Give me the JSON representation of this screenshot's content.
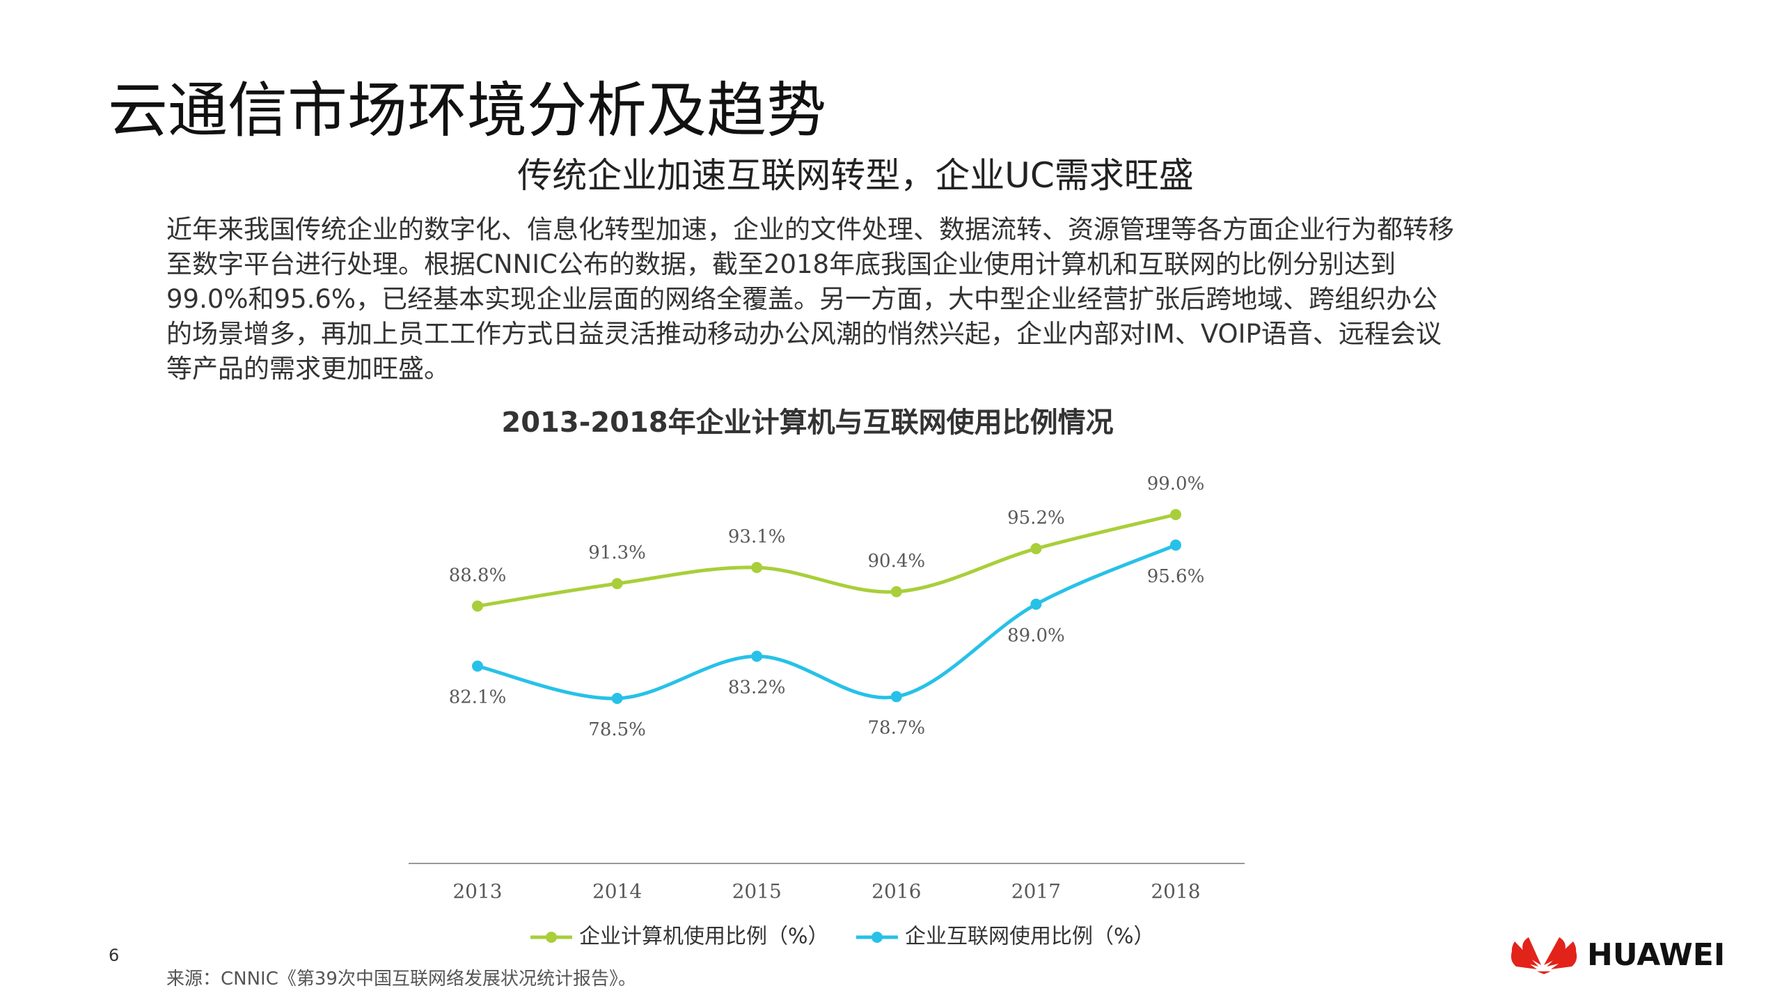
{
  "header": {
    "title": "云通信市场环境分析及趋势",
    "subtitle": "传统企业加速互联网转型，企业UC需求旺盛"
  },
  "body": {
    "paragraph": "近年来我国传统企业的数字化、信息化转型加速，企业的文件处理、数据流转、资源管理等各方面企业行为都转移至数字平台进行处理。根据CNNIC公布的数据，截至2018年底我国企业使用计算机和互联网的比例分别达到99.0%和95.6%，已经基本实现企业层面的网络全覆盖。另一方面，大中型企业经营扩张后跨地域、跨组织办公的场景增多，再加上员工工作方式日益灵活推动移动办公风潮的悄然兴起，企业内部对IM、VOIP语音、远程会议等产品的需求更加旺盛。"
  },
  "chart_data": {
    "type": "line",
    "title": "2013-2018年企业计算机与互联网使用比例情况",
    "categories": [
      "2013",
      "2014",
      "2015",
      "2016",
      "2017",
      "2018"
    ],
    "series": [
      {
        "name": "企业计算机使用比例（%）",
        "color": "#a8cf3a",
        "values": [
          88.8,
          91.3,
          93.1,
          90.4,
          95.2,
          99.0
        ],
        "value_labels": [
          "88.8%",
          "91.3%",
          "93.1%",
          "90.4%",
          "95.2%",
          "99.0%"
        ]
      },
      {
        "name": "企业互联网使用比例（%）",
        "color": "#27c1e8",
        "values": [
          82.1,
          78.5,
          83.2,
          78.7,
          89.0,
          95.6
        ],
        "value_labels": [
          "82.1%",
          "78.5%",
          "83.2%",
          "78.7%",
          "89.0%",
          "95.6%"
        ]
      }
    ]
  },
  "footer": {
    "page_number": "6",
    "source": "来源：CNNIC《第39次中国互联网络发展状况统计报告》。",
    "brand": "HUAWEI"
  }
}
